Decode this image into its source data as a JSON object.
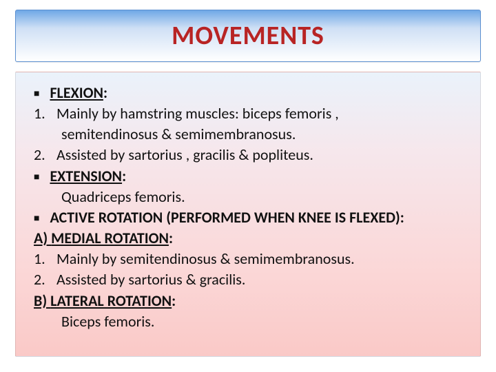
{
  "title": {
    "text": "MOVEMENTS",
    "color": "#b82424",
    "fontsize": 38
  },
  "title_box": {
    "gradient_top": "#6fa8e6",
    "gradient_mid": "#cfe0f5",
    "gradient_bottom": "#ffffff",
    "border_color": "#5b8fd0"
  },
  "content_box": {
    "gradient_top": "#eaf2fb",
    "gradient_mid": "#f6e7ec",
    "gradient_bottom": "#fac9c7",
    "text_color": "#111111",
    "fontsize": 22
  },
  "body": {
    "b1": {
      "label": "FLEXION",
      "colon": ":"
    },
    "l1_num": "1.",
    "l1_text": "Mainly by hamstring muscles: biceps femoris ,",
    "l1_cont": "semitendinosus & semimembranosus.",
    "l2_num": "2.",
    "l2_text": "Assisted by sartorius , gracilis & popliteus.",
    "b2": {
      "label": "EXTENSION",
      "colon": ":"
    },
    "ext_body": "Quadriceps femoris.",
    "b3": {
      "label": "ACTIVE ROTATION (PERFORMED WHEN KNEE IS FLEXED)",
      "colon": ":"
    },
    "a_prefix": "A) ",
    "a_label": "MEDIAL ROTATION",
    "a_colon": ":",
    "a1_num": "1.",
    "a1_text": "Mainly by semitendinosus & semimembranosus.",
    "a2_num": "2.",
    "a2_text": "Assisted by sartorius & gracilis.",
    "b_prefix": "B) ",
    "b_label": "LATERAL ROTATION",
    "b_colon": ":",
    "b_body": "Biceps femoris."
  }
}
